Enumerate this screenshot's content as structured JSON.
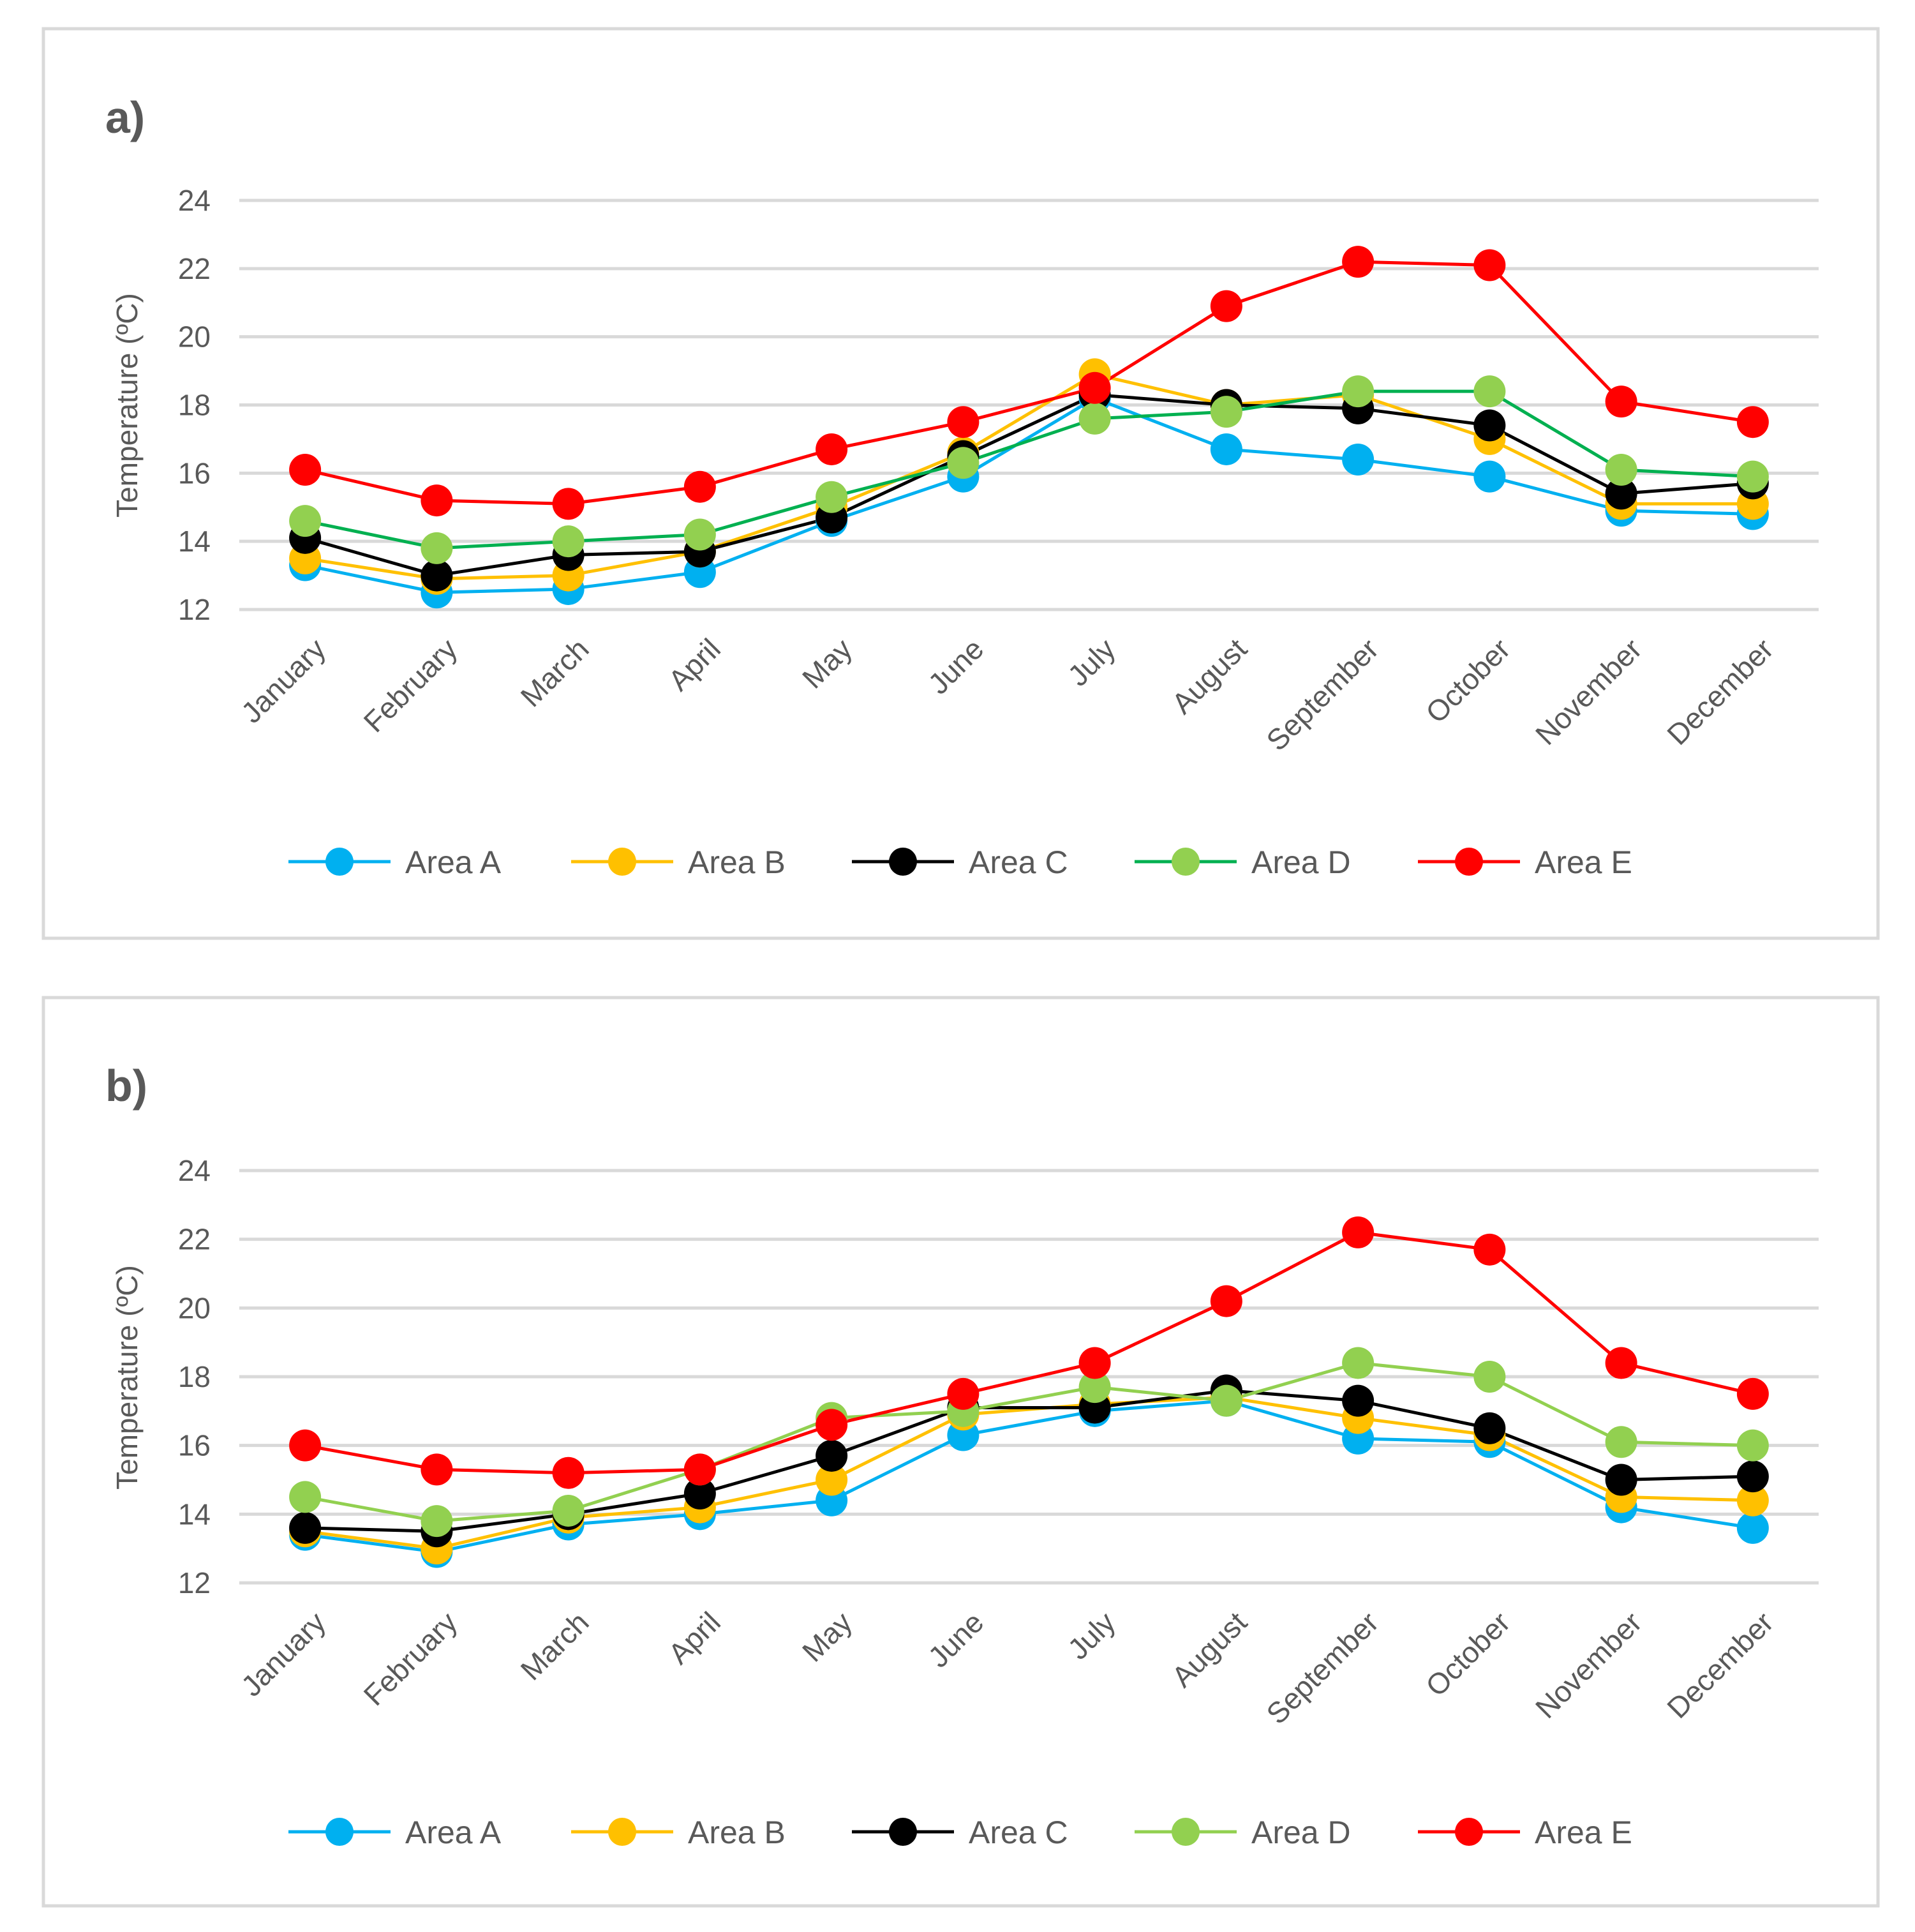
{
  "chart_data": [
    {
      "type": "line",
      "panel_label": "a)",
      "ylabel": "Temperature (ºC)",
      "xlabel": "",
      "ylim": [
        12,
        24
      ],
      "yticks": [
        12,
        14,
        16,
        18,
        20,
        22,
        24
      ],
      "grid": true,
      "legend_position": "bottom",
      "categories": [
        "January",
        "February",
        "March",
        "April",
        "May",
        "June",
        "July",
        "August",
        "September",
        "October",
        "November",
        "December"
      ],
      "series": [
        {
          "name": "Area A",
          "color": "#00b0f0",
          "values": [
            13.3,
            12.5,
            12.6,
            13.1,
            14.6,
            15.9,
            18.2,
            16.7,
            16.4,
            15.9,
            14.9,
            14.8
          ]
        },
        {
          "name": "Area B",
          "color": "#ffc000",
          "values": [
            13.5,
            12.9,
            13.0,
            13.7,
            15.0,
            16.6,
            18.9,
            18.0,
            18.3,
            17.0,
            15.1,
            15.1
          ]
        },
        {
          "name": "Area C",
          "color": "#000000",
          "values": [
            14.1,
            13.0,
            13.6,
            13.7,
            14.7,
            16.5,
            18.3,
            18.0,
            17.9,
            17.4,
            15.4,
            15.7
          ]
        },
        {
          "name": "Area D",
          "color": "#92d050",
          "line_color": "#00b050",
          "values": [
            14.6,
            13.8,
            14.0,
            14.2,
            15.3,
            16.3,
            17.6,
            17.8,
            18.4,
            18.4,
            16.1,
            15.9
          ]
        },
        {
          "name": "Area E",
          "color": "#ff0000",
          "values": [
            16.1,
            15.2,
            15.1,
            15.6,
            16.7,
            17.5,
            18.5,
            20.9,
            22.2,
            22.1,
            18.1,
            17.5
          ]
        }
      ]
    },
    {
      "type": "line",
      "panel_label": "b)",
      "ylabel": "Temperature (ºC)",
      "xlabel": "",
      "ylim": [
        12,
        24
      ],
      "yticks": [
        12,
        14,
        16,
        18,
        20,
        22,
        24
      ],
      "grid": true,
      "legend_position": "bottom",
      "categories": [
        "January",
        "February",
        "March",
        "April",
        "May",
        "June",
        "July",
        "August",
        "September",
        "October",
        "November",
        "December"
      ],
      "series": [
        {
          "name": "Area A",
          "color": "#00b0f0",
          "values": [
            13.4,
            12.9,
            13.7,
            14.0,
            14.4,
            16.3,
            17.0,
            17.3,
            16.2,
            16.1,
            14.2,
            13.6
          ]
        },
        {
          "name": "Area B",
          "color": "#ffc000",
          "values": [
            13.5,
            13.0,
            13.9,
            14.2,
            15.0,
            16.9,
            17.2,
            17.4,
            16.8,
            16.3,
            14.5,
            14.4
          ]
        },
        {
          "name": "Area C",
          "color": "#000000",
          "values": [
            13.6,
            13.5,
            14.0,
            14.6,
            15.7,
            17.1,
            17.1,
            17.6,
            17.3,
            16.5,
            15.0,
            15.1
          ]
        },
        {
          "name": "Area D",
          "color": "#92d050",
          "line_color": "#92d050",
          "values": [
            14.5,
            13.8,
            14.1,
            15.3,
            16.8,
            17.0,
            17.7,
            17.3,
            18.4,
            18.0,
            16.1,
            16.0
          ]
        },
        {
          "name": "Area E",
          "color": "#ff0000",
          "values": [
            16.0,
            15.3,
            15.2,
            15.3,
            16.6,
            17.5,
            18.4,
            20.2,
            22.2,
            21.7,
            18.4,
            17.5
          ]
        }
      ]
    }
  ]
}
